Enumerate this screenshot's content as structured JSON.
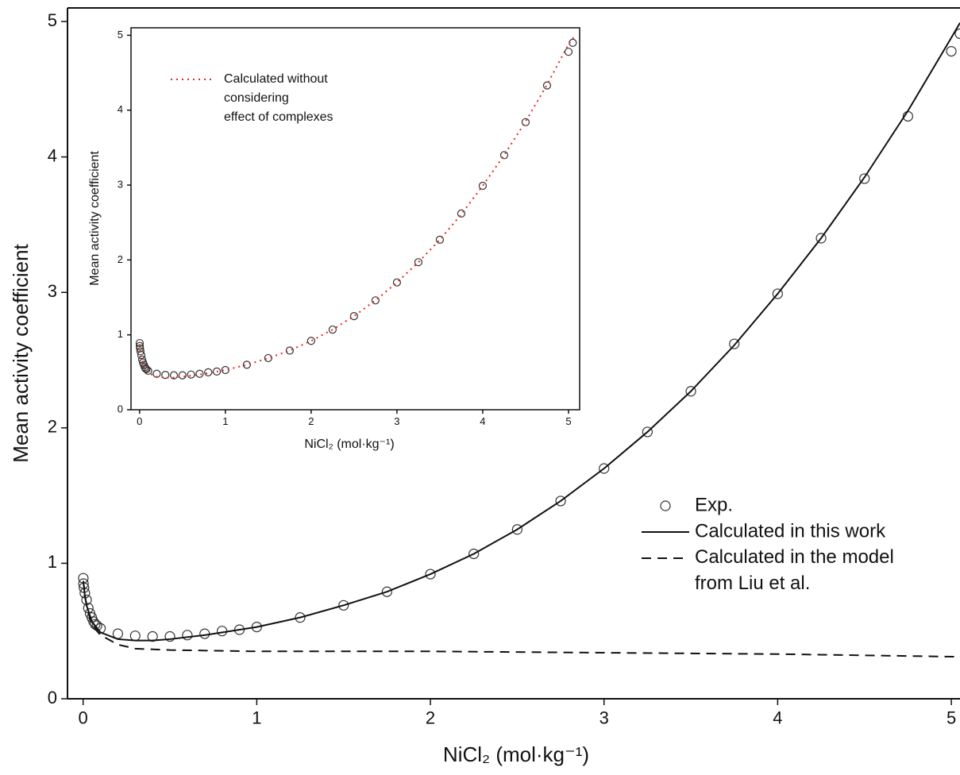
{
  "chart_data": [
    {
      "type": "line",
      "x_label": "NiCl₂ (mol·kg⁻¹)",
      "y_label": "Mean activity coefficient",
      "xlim": [
        -0.09,
        5.05
      ],
      "ylim": [
        0,
        5.1
      ],
      "xticks": [
        0,
        1,
        2,
        3,
        4,
        5
      ],
      "yticks": [
        0,
        1,
        2,
        3,
        4,
        5
      ],
      "legend": "right",
      "series": [
        {
          "name": "Exp.",
          "style": "markers",
          "color": "#333333",
          "x": [
            0.001,
            0.002,
            0.005,
            0.01,
            0.02,
            0.03,
            0.04,
            0.05,
            0.06,
            0.07,
            0.08,
            0.1,
            0.2,
            0.3,
            0.4,
            0.5,
            0.6,
            0.7,
            0.8,
            0.9,
            1.0,
            1.25,
            1.5,
            1.75,
            2.0,
            2.25,
            2.5,
            2.75,
            3.0,
            3.25,
            3.5,
            3.75,
            4.0,
            4.25,
            4.5,
            4.75,
            5.0,
            5.05
          ],
          "values": [
            0.89,
            0.85,
            0.82,
            0.78,
            0.73,
            0.67,
            0.63,
            0.6,
            0.57,
            0.55,
            0.54,
            0.52,
            0.48,
            0.465,
            0.46,
            0.46,
            0.47,
            0.48,
            0.5,
            0.51,
            0.53,
            0.6,
            0.69,
            0.79,
            0.92,
            1.07,
            1.25,
            1.46,
            1.7,
            1.97,
            2.27,
            2.62,
            2.99,
            3.4,
            3.84,
            4.3,
            4.78,
            4.91
          ]
        },
        {
          "name": "Calculated in this work",
          "style": "solid",
          "color": "#111111",
          "x": [
            0.001,
            0.01,
            0.02,
            0.05,
            0.1,
            0.2,
            0.3,
            0.4,
            0.5,
            0.7,
            1,
            1.25,
            1.5,
            1.75,
            2,
            2.25,
            2.5,
            2.75,
            3,
            3.25,
            3.5,
            3.75,
            4,
            4.25,
            4.5,
            4.75,
            5,
            5.05
          ],
          "values": [
            0.87,
            0.76,
            0.69,
            0.57,
            0.49,
            0.44,
            0.43,
            0.43,
            0.44,
            0.47,
            0.53,
            0.6,
            0.69,
            0.79,
            0.92,
            1.07,
            1.25,
            1.46,
            1.7,
            1.97,
            2.27,
            2.61,
            2.99,
            3.4,
            3.85,
            4.34,
            4.88,
            4.99
          ]
        },
        {
          "name": "Calculated in the model\nfrom Liu et al.",
          "style": "dashed",
          "color": "#111111",
          "x": [
            0.001,
            0.02,
            0.05,
            0.1,
            0.2,
            0.3,
            0.5,
            1,
            2,
            3,
            4,
            5.05
          ],
          "values": [
            0.87,
            0.68,
            0.55,
            0.47,
            0.4,
            0.37,
            0.36,
            0.35,
            0.35,
            0.34,
            0.33,
            0.31
          ]
        }
      ]
    },
    {
      "type": "line",
      "x_label": "NiCl₂ (mol·kg⁻¹)",
      "y_label": "Mean activity coefficient",
      "xlim": [
        -0.1,
        5.13
      ],
      "ylim": [
        0,
        5.1
      ],
      "xticks": [
        0,
        1,
        2,
        3,
        4,
        5
      ],
      "yticks": [
        0,
        1,
        2,
        3,
        4,
        5
      ],
      "legend": "upper left",
      "series": [
        {
          "style": "markers",
          "color": "#333333",
          "x": [
            0.001,
            0.002,
            0.005,
            0.01,
            0.02,
            0.03,
            0.04,
            0.05,
            0.06,
            0.07,
            0.08,
            0.1,
            0.2,
            0.3,
            0.4,
            0.5,
            0.6,
            0.7,
            0.8,
            0.9,
            1.0,
            1.25,
            1.5,
            1.75,
            2.0,
            2.25,
            2.5,
            2.75,
            3.0,
            3.25,
            3.5,
            3.75,
            4.0,
            4.25,
            4.5,
            4.75,
            5.0,
            5.05
          ],
          "values": [
            0.89,
            0.85,
            0.82,
            0.78,
            0.73,
            0.67,
            0.63,
            0.6,
            0.57,
            0.55,
            0.54,
            0.52,
            0.48,
            0.465,
            0.46,
            0.46,
            0.47,
            0.48,
            0.5,
            0.51,
            0.53,
            0.6,
            0.69,
            0.79,
            0.92,
            1.07,
            1.25,
            1.46,
            1.7,
            1.97,
            2.27,
            2.62,
            2.99,
            3.4,
            3.84,
            4.33,
            4.78,
            4.9
          ]
        },
        {
          "name": "Calculated without\nconsidering\neffect of complexes",
          "style": "dotted",
          "color": "#e8251f",
          "x": [
            0.001,
            0.01,
            0.02,
            0.05,
            0.1,
            0.2,
            0.3,
            0.4,
            0.5,
            0.7,
            1,
            1.25,
            1.5,
            1.75,
            2,
            2.25,
            2.5,
            2.75,
            3,
            3.25,
            3.5,
            3.75,
            4,
            4.25,
            4.5,
            4.75,
            5,
            5.08
          ],
          "values": [
            0.87,
            0.76,
            0.69,
            0.57,
            0.49,
            0.44,
            0.43,
            0.43,
            0.44,
            0.47,
            0.53,
            0.6,
            0.69,
            0.79,
            0.92,
            1.07,
            1.25,
            1.46,
            1.7,
            1.97,
            2.27,
            2.61,
            2.99,
            3.4,
            3.85,
            4.34,
            4.88,
            5.0
          ]
        }
      ]
    }
  ]
}
